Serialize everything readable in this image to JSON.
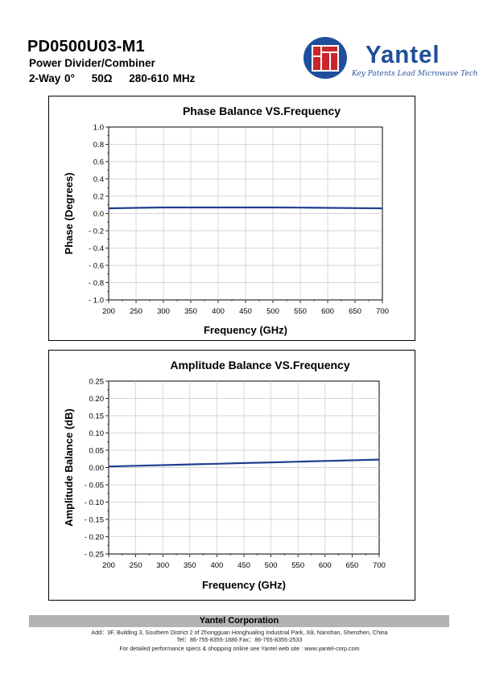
{
  "header": {
    "part_number": "PD0500U03-M1",
    "product_type": "Power Divider/Combiner",
    "way": "2-Way 0°",
    "impedance": "50Ω",
    "freq_range": "280-610 MHz"
  },
  "brand": {
    "name": "Yantel",
    "tagline": "Key Patents Lead Microwave Tech",
    "color": "#1f4f9a"
  },
  "chart_data": [
    {
      "type": "line",
      "title": "Phase Balance VS.Frequency",
      "xlabel": "Frequency (GHz)",
      "ylabel": "Phase (Degrees)",
      "xlim": [
        200,
        700
      ],
      "ylim": [
        -1.0,
        1.0
      ],
      "x_ticks": [
        "200",
        "250",
        "300",
        "350",
        "400",
        "450",
        "500",
        "550",
        "600",
        "650",
        "700"
      ],
      "y_ticks": [
        "1.0",
        "0.8",
        "0.6",
        "0.4",
        "0.2",
        "0.0",
        "- 0.2",
        "- 0.4",
        "- 0.6",
        "- 0.8",
        "- 1.0"
      ],
      "grid": true,
      "series": [
        {
          "color": "#1f3f8f",
          "x": [
            200,
            250,
            300,
            350,
            400,
            450,
            500,
            550,
            600,
            650,
            700
          ],
          "y": [
            0.06,
            0.065,
            0.07,
            0.07,
            0.07,
            0.07,
            0.07,
            0.068,
            0.065,
            0.062,
            0.06
          ]
        }
      ]
    },
    {
      "type": "line",
      "title": "Amplitude Balance VS.Frequency",
      "xlabel": "Frequency (GHz)",
      "ylabel": "Amplitude Balance (dB)",
      "xlim": [
        200,
        700
      ],
      "ylim": [
        -0.25,
        0.25
      ],
      "x_ticks": [
        "200",
        "250",
        "300",
        "350",
        "400",
        "450",
        "500",
        "550",
        "600",
        "650",
        "700"
      ],
      "y_ticks": [
        "0.25",
        "0.20",
        "0.15",
        "0.10",
        "0.05",
        "0.00",
        "- 0.05",
        "- 0.10",
        "- 0.15",
        "- 0.20",
        "- 0.25"
      ],
      "grid": true,
      "series": [
        {
          "color": "#1f3f8f",
          "x": [
            200,
            250,
            300,
            350,
            400,
            450,
            500,
            550,
            600,
            650,
            700
          ],
          "y": [
            0.003,
            0.005,
            0.007,
            0.009,
            0.011,
            0.013,
            0.015,
            0.017,
            0.019,
            0.021,
            0.023
          ]
        }
      ]
    }
  ],
  "footer": {
    "company": "Yantel Corporation",
    "address": "Add：3F, Building 3, Southern District 2 of Zhongguan Honghualing Industrial Park, Xili, Nanshan, Shenzhen, China",
    "tel_fax": "Tel：86-755-8355-1886 Fax：86-755-8355-2533",
    "web": "For detailed performance specs & shopping online see Yantel web site : www.yantel-corp.com"
  }
}
